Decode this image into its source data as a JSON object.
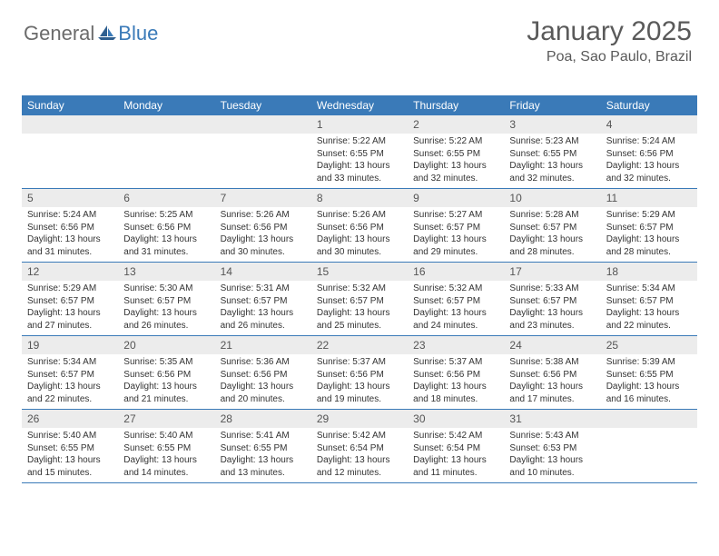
{
  "logo": {
    "text1": "General",
    "text2": "Blue"
  },
  "header": {
    "month": "January 2025",
    "location": "Poa, Sao Paulo, Brazil"
  },
  "colors": {
    "brand_blue": "#3a7ab8",
    "grey_text": "#6b6b6b",
    "header_grey": "#5a5a5a",
    "cell_num_bg": "#ececec",
    "body_text": "#333333",
    "background": "#ffffff"
  },
  "dayNames": [
    "Sunday",
    "Monday",
    "Tuesday",
    "Wednesday",
    "Thursday",
    "Friday",
    "Saturday"
  ],
  "weeks": [
    [
      null,
      null,
      null,
      {
        "d": "1",
        "sr": "5:22 AM",
        "ss": "6:55 PM",
        "dl": "13 hours and 33 minutes."
      },
      {
        "d": "2",
        "sr": "5:22 AM",
        "ss": "6:55 PM",
        "dl": "13 hours and 32 minutes."
      },
      {
        "d": "3",
        "sr": "5:23 AM",
        "ss": "6:55 PM",
        "dl": "13 hours and 32 minutes."
      },
      {
        "d": "4",
        "sr": "5:24 AM",
        "ss": "6:56 PM",
        "dl": "13 hours and 32 minutes."
      }
    ],
    [
      {
        "d": "5",
        "sr": "5:24 AM",
        "ss": "6:56 PM",
        "dl": "13 hours and 31 minutes."
      },
      {
        "d": "6",
        "sr": "5:25 AM",
        "ss": "6:56 PM",
        "dl": "13 hours and 31 minutes."
      },
      {
        "d": "7",
        "sr": "5:26 AM",
        "ss": "6:56 PM",
        "dl": "13 hours and 30 minutes."
      },
      {
        "d": "8",
        "sr": "5:26 AM",
        "ss": "6:56 PM",
        "dl": "13 hours and 30 minutes."
      },
      {
        "d": "9",
        "sr": "5:27 AM",
        "ss": "6:57 PM",
        "dl": "13 hours and 29 minutes."
      },
      {
        "d": "10",
        "sr": "5:28 AM",
        "ss": "6:57 PM",
        "dl": "13 hours and 28 minutes."
      },
      {
        "d": "11",
        "sr": "5:29 AM",
        "ss": "6:57 PM",
        "dl": "13 hours and 28 minutes."
      }
    ],
    [
      {
        "d": "12",
        "sr": "5:29 AM",
        "ss": "6:57 PM",
        "dl": "13 hours and 27 minutes."
      },
      {
        "d": "13",
        "sr": "5:30 AM",
        "ss": "6:57 PM",
        "dl": "13 hours and 26 minutes."
      },
      {
        "d": "14",
        "sr": "5:31 AM",
        "ss": "6:57 PM",
        "dl": "13 hours and 26 minutes."
      },
      {
        "d": "15",
        "sr": "5:32 AM",
        "ss": "6:57 PM",
        "dl": "13 hours and 25 minutes."
      },
      {
        "d": "16",
        "sr": "5:32 AM",
        "ss": "6:57 PM",
        "dl": "13 hours and 24 minutes."
      },
      {
        "d": "17",
        "sr": "5:33 AM",
        "ss": "6:57 PM",
        "dl": "13 hours and 23 minutes."
      },
      {
        "d": "18",
        "sr": "5:34 AM",
        "ss": "6:57 PM",
        "dl": "13 hours and 22 minutes."
      }
    ],
    [
      {
        "d": "19",
        "sr": "5:34 AM",
        "ss": "6:57 PM",
        "dl": "13 hours and 22 minutes."
      },
      {
        "d": "20",
        "sr": "5:35 AM",
        "ss": "6:56 PM",
        "dl": "13 hours and 21 minutes."
      },
      {
        "d": "21",
        "sr": "5:36 AM",
        "ss": "6:56 PM",
        "dl": "13 hours and 20 minutes."
      },
      {
        "d": "22",
        "sr": "5:37 AM",
        "ss": "6:56 PM",
        "dl": "13 hours and 19 minutes."
      },
      {
        "d": "23",
        "sr": "5:37 AM",
        "ss": "6:56 PM",
        "dl": "13 hours and 18 minutes."
      },
      {
        "d": "24",
        "sr": "5:38 AM",
        "ss": "6:56 PM",
        "dl": "13 hours and 17 minutes."
      },
      {
        "d": "25",
        "sr": "5:39 AM",
        "ss": "6:55 PM",
        "dl": "13 hours and 16 minutes."
      }
    ],
    [
      {
        "d": "26",
        "sr": "5:40 AM",
        "ss": "6:55 PM",
        "dl": "13 hours and 15 minutes."
      },
      {
        "d": "27",
        "sr": "5:40 AM",
        "ss": "6:55 PM",
        "dl": "13 hours and 14 minutes."
      },
      {
        "d": "28",
        "sr": "5:41 AM",
        "ss": "6:55 PM",
        "dl": "13 hours and 13 minutes."
      },
      {
        "d": "29",
        "sr": "5:42 AM",
        "ss": "6:54 PM",
        "dl": "13 hours and 12 minutes."
      },
      {
        "d": "30",
        "sr": "5:42 AM",
        "ss": "6:54 PM",
        "dl": "13 hours and 11 minutes."
      },
      {
        "d": "31",
        "sr": "5:43 AM",
        "ss": "6:53 PM",
        "dl": "13 hours and 10 minutes."
      },
      null
    ]
  ],
  "labels": {
    "sunrise": "Sunrise: ",
    "sunset": "Sunset: ",
    "daylight": "Daylight: "
  }
}
